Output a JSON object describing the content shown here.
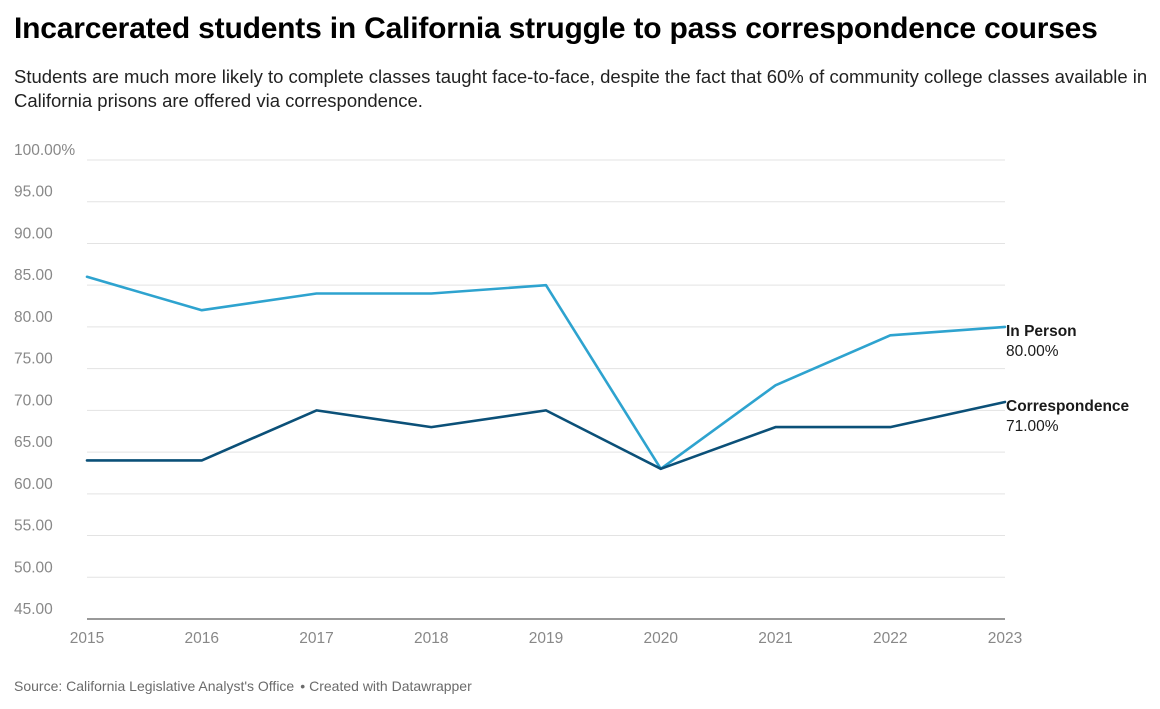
{
  "header": {
    "title": "Incarcerated students in California struggle to pass correspondence courses",
    "subtitle": "Students are much more likely to complete classes taught face-to-face, despite the fact that 60% of community college classes available in California prisons are offered via correspondence."
  },
  "footer": {
    "source": "Source: California Legislative Analyst's Office",
    "separator": "•",
    "credit": "Created with Datawrapper"
  },
  "chart_data": {
    "type": "line",
    "x": [
      2015,
      2016,
      2017,
      2018,
      2019,
      2020,
      2021,
      2022,
      2023
    ],
    "x_tick_labels": [
      "2015",
      "2016",
      "2017",
      "2018",
      "2019",
      "2020",
      "2021",
      "2022",
      "2023"
    ],
    "ylim": [
      45,
      100
    ],
    "y_ticks": [
      45,
      50,
      55,
      60,
      65,
      70,
      75,
      80,
      85,
      90,
      95,
      100
    ],
    "y_tick_labels": [
      "45.00",
      "50.00",
      "55.00",
      "60.00",
      "65.00",
      "70.00",
      "75.00",
      "80.00",
      "85.00",
      "90.00",
      "95.00",
      "100.00%"
    ],
    "grid": true,
    "legend": "none (direct labels at line ends, right)",
    "series": [
      {
        "name": "In Person",
        "end_label": "80.00%",
        "color": "#2ea3cf",
        "values": [
          86,
          82,
          84,
          84,
          85,
          63,
          73,
          79,
          80
        ]
      },
      {
        "name": "Correspondence",
        "end_label": "71.00%",
        "color": "#0b5078",
        "values": [
          64,
          64,
          70,
          68,
          70,
          63,
          68,
          68,
          71
        ]
      }
    ]
  }
}
